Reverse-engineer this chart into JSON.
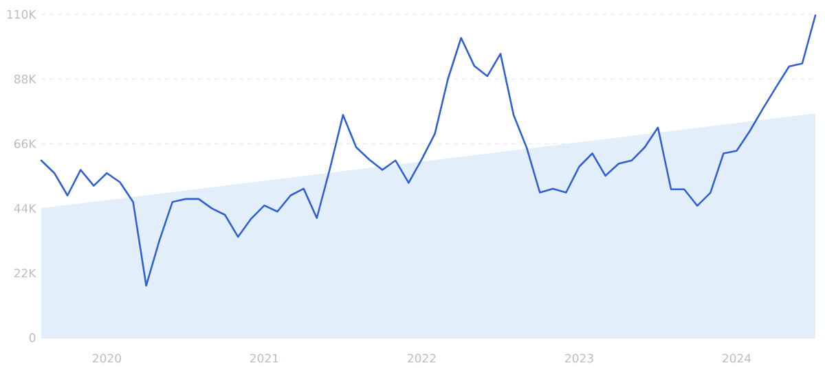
{
  "chart_data": {
    "type": "line",
    "x": [
      "2019-08",
      "2019-09",
      "2019-10",
      "2019-11",
      "2019-12",
      "2020-01",
      "2020-02",
      "2020-03",
      "2020-04",
      "2020-05",
      "2020-06",
      "2020-07",
      "2020-08",
      "2020-09",
      "2020-10",
      "2020-11",
      "2020-12",
      "2021-01",
      "2021-02",
      "2021-03",
      "2021-04",
      "2021-05",
      "2021-06",
      "2021-07",
      "2021-08",
      "2021-09",
      "2021-10",
      "2021-11",
      "2021-12",
      "2022-01",
      "2022-02",
      "2022-03",
      "2022-04",
      "2022-05",
      "2022-06",
      "2022-07",
      "2022-08",
      "2022-09",
      "2022-10",
      "2022-11",
      "2022-12",
      "2023-01",
      "2023-02",
      "2023-03",
      "2023-04",
      "2023-05",
      "2023-06",
      "2023-07",
      "2023-08",
      "2023-09",
      "2023-10",
      "2023-11",
      "2023-12",
      "2024-01",
      "2024-02",
      "2024-03",
      "2024-04",
      "2024-05",
      "2024-06",
      "2024-07"
    ],
    "series": [
      {
        "type": "area",
        "color": "#e3eefb",
        "x": [
          "2019-08",
          "2024-07"
        ],
        "values": [
          44100,
          76300
        ]
      },
      {
        "color": "#2f5fd2",
        "values": [
          60300,
          56000,
          48400,
          57100,
          51700,
          56000,
          52900,
          46200,
          17700,
          33000,
          46200,
          47200,
          47200,
          44000,
          41800,
          34300,
          40500,
          45000,
          42900,
          48400,
          50700,
          40700,
          57500,
          75800,
          64800,
          60600,
          57100,
          60300,
          52700,
          60700,
          69400,
          88100,
          102000,
          92500,
          89000,
          96600,
          75800,
          64600,
          49400,
          50700,
          49400,
          58200,
          62700,
          55100,
          59200,
          60300,
          64800,
          71500,
          50500,
          50500,
          44900,
          49300,
          62700,
          63600,
          70300,
          77900,
          85200,
          92300,
          93300,
          109700
        ]
      }
    ],
    "xlim": [
      "2019-08",
      "2024-07"
    ],
    "xticks": [
      "2020",
      "2021",
      "2022",
      "2023",
      "2024"
    ],
    "ylim": [
      0,
      110000
    ],
    "yticks": [
      0,
      {
        "value": 22000,
        "label": "22K"
      },
      {
        "value": 44000,
        "label": "44K"
      },
      {
        "value": 66000,
        "label": "66K"
      },
      {
        "value": 88000,
        "label": "88K"
      },
      {
        "value": 110000,
        "label": "110K"
      }
    ],
    "grid": "y",
    "line_style": "solid"
  }
}
